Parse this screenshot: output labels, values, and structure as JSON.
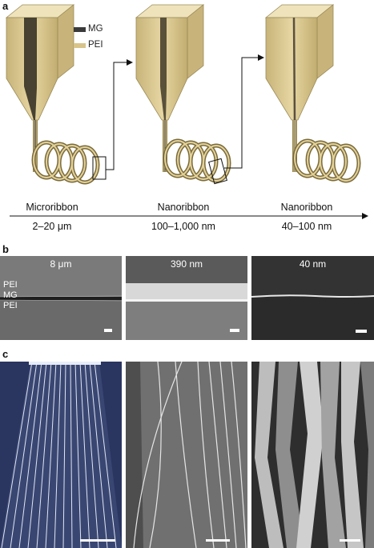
{
  "panel_a": {
    "label": "a",
    "legend": {
      "mg": "MG",
      "pei": "PEI"
    },
    "stages": [
      {
        "name": "Microribbon",
        "size": "2–20 μm"
      },
      {
        "name": "Nanoribbon",
        "size": "100–1,000 nm"
      },
      {
        "name": "Nanoribbon",
        "size": "40–100 nm"
      }
    ]
  },
  "panel_b": {
    "label": "b",
    "images": [
      {
        "title": "8 μm",
        "layers": [
          "PEI",
          "MG",
          "PEI"
        ]
      },
      {
        "title": "390 nm"
      },
      {
        "title": "40 nm"
      }
    ]
  },
  "panel_c": {
    "label": "c"
  },
  "colors": {
    "pei": "#d8c48a",
    "mg": "#3a3a3a",
    "navy": "#2a3560"
  }
}
